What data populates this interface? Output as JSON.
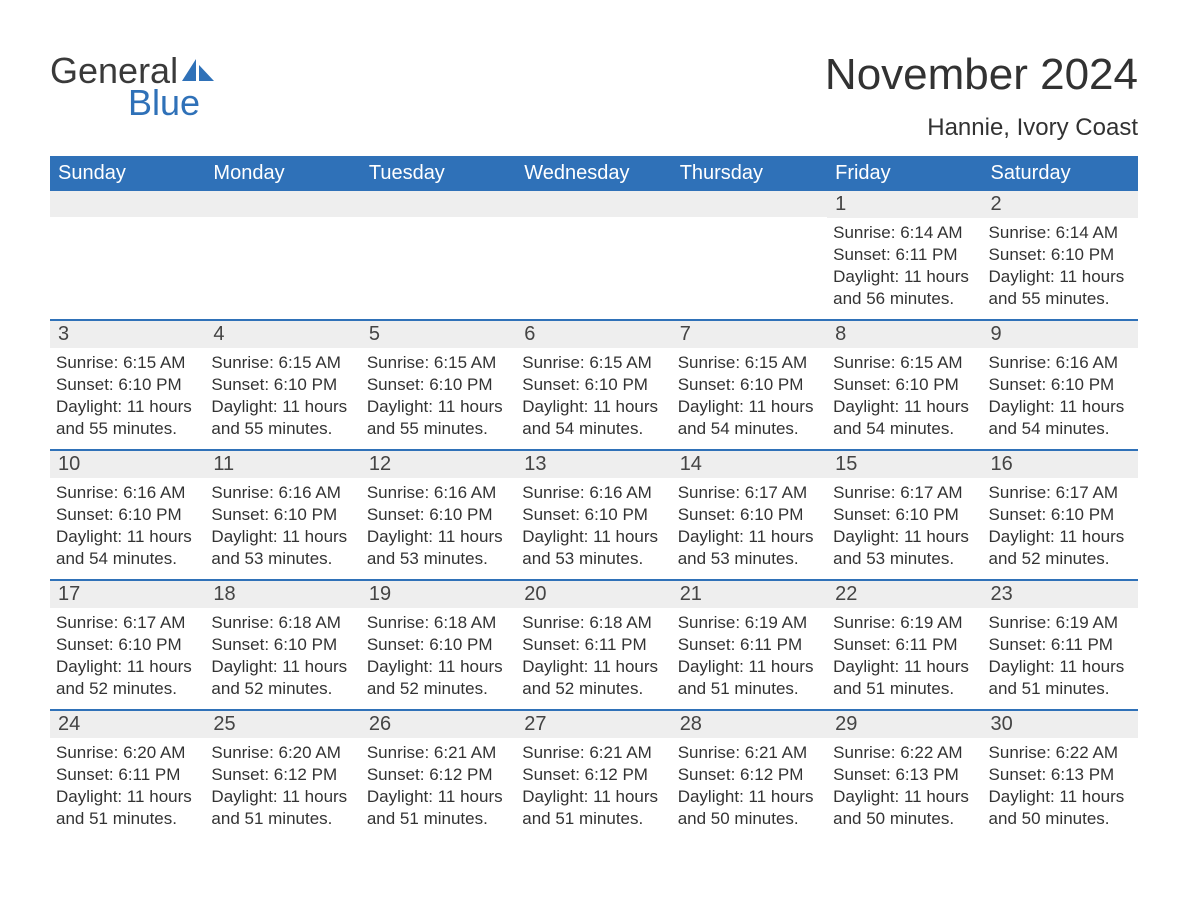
{
  "logo": {
    "text_general": "General",
    "text_blue": "Blue",
    "shape_color": "#2f71b8"
  },
  "title": "November 2024",
  "location": "Hannie, Ivory Coast",
  "colors": {
    "header_bg": "#2f71b8",
    "header_text": "#ffffff",
    "daynum_bg": "#eeeeee",
    "week_border": "#2f71b8",
    "body_text": "#333333",
    "title_text": "#323232"
  },
  "day_labels": [
    "Sunday",
    "Monday",
    "Tuesday",
    "Wednesday",
    "Thursday",
    "Friday",
    "Saturday"
  ],
  "weeks": [
    [
      {
        "empty": true
      },
      {
        "empty": true
      },
      {
        "empty": true
      },
      {
        "empty": true
      },
      {
        "empty": true
      },
      {
        "day": "1",
        "sunrise": "Sunrise: 6:14 AM",
        "sunset": "Sunset: 6:11 PM",
        "daylight": "Daylight: 11 hours and 56 minutes."
      },
      {
        "day": "2",
        "sunrise": "Sunrise: 6:14 AM",
        "sunset": "Sunset: 6:10 PM",
        "daylight": "Daylight: 11 hours and 55 minutes."
      }
    ],
    [
      {
        "day": "3",
        "sunrise": "Sunrise: 6:15 AM",
        "sunset": "Sunset: 6:10 PM",
        "daylight": "Daylight: 11 hours and 55 minutes."
      },
      {
        "day": "4",
        "sunrise": "Sunrise: 6:15 AM",
        "sunset": "Sunset: 6:10 PM",
        "daylight": "Daylight: 11 hours and 55 minutes."
      },
      {
        "day": "5",
        "sunrise": "Sunrise: 6:15 AM",
        "sunset": "Sunset: 6:10 PM",
        "daylight": "Daylight: 11 hours and 55 minutes."
      },
      {
        "day": "6",
        "sunrise": "Sunrise: 6:15 AM",
        "sunset": "Sunset: 6:10 PM",
        "daylight": "Daylight: 11 hours and 54 minutes."
      },
      {
        "day": "7",
        "sunrise": "Sunrise: 6:15 AM",
        "sunset": "Sunset: 6:10 PM",
        "daylight": "Daylight: 11 hours and 54 minutes."
      },
      {
        "day": "8",
        "sunrise": "Sunrise: 6:15 AM",
        "sunset": "Sunset: 6:10 PM",
        "daylight": "Daylight: 11 hours and 54 minutes."
      },
      {
        "day": "9",
        "sunrise": "Sunrise: 6:16 AM",
        "sunset": "Sunset: 6:10 PM",
        "daylight": "Daylight: 11 hours and 54 minutes."
      }
    ],
    [
      {
        "day": "10",
        "sunrise": "Sunrise: 6:16 AM",
        "sunset": "Sunset: 6:10 PM",
        "daylight": "Daylight: 11 hours and 54 minutes."
      },
      {
        "day": "11",
        "sunrise": "Sunrise: 6:16 AM",
        "sunset": "Sunset: 6:10 PM",
        "daylight": "Daylight: 11 hours and 53 minutes."
      },
      {
        "day": "12",
        "sunrise": "Sunrise: 6:16 AM",
        "sunset": "Sunset: 6:10 PM",
        "daylight": "Daylight: 11 hours and 53 minutes."
      },
      {
        "day": "13",
        "sunrise": "Sunrise: 6:16 AM",
        "sunset": "Sunset: 6:10 PM",
        "daylight": "Daylight: 11 hours and 53 minutes."
      },
      {
        "day": "14",
        "sunrise": "Sunrise: 6:17 AM",
        "sunset": "Sunset: 6:10 PM",
        "daylight": "Daylight: 11 hours and 53 minutes."
      },
      {
        "day": "15",
        "sunrise": "Sunrise: 6:17 AM",
        "sunset": "Sunset: 6:10 PM",
        "daylight": "Daylight: 11 hours and 53 minutes."
      },
      {
        "day": "16",
        "sunrise": "Sunrise: 6:17 AM",
        "sunset": "Sunset: 6:10 PM",
        "daylight": "Daylight: 11 hours and 52 minutes."
      }
    ],
    [
      {
        "day": "17",
        "sunrise": "Sunrise: 6:17 AM",
        "sunset": "Sunset: 6:10 PM",
        "daylight": "Daylight: 11 hours and 52 minutes."
      },
      {
        "day": "18",
        "sunrise": "Sunrise: 6:18 AM",
        "sunset": "Sunset: 6:10 PM",
        "daylight": "Daylight: 11 hours and 52 minutes."
      },
      {
        "day": "19",
        "sunrise": "Sunrise: 6:18 AM",
        "sunset": "Sunset: 6:10 PM",
        "daylight": "Daylight: 11 hours and 52 minutes."
      },
      {
        "day": "20",
        "sunrise": "Sunrise: 6:18 AM",
        "sunset": "Sunset: 6:11 PM",
        "daylight": "Daylight: 11 hours and 52 minutes."
      },
      {
        "day": "21",
        "sunrise": "Sunrise: 6:19 AM",
        "sunset": "Sunset: 6:11 PM",
        "daylight": "Daylight: 11 hours and 51 minutes."
      },
      {
        "day": "22",
        "sunrise": "Sunrise: 6:19 AM",
        "sunset": "Sunset: 6:11 PM",
        "daylight": "Daylight: 11 hours and 51 minutes."
      },
      {
        "day": "23",
        "sunrise": "Sunrise: 6:19 AM",
        "sunset": "Sunset: 6:11 PM",
        "daylight": "Daylight: 11 hours and 51 minutes."
      }
    ],
    [
      {
        "day": "24",
        "sunrise": "Sunrise: 6:20 AM",
        "sunset": "Sunset: 6:11 PM",
        "daylight": "Daylight: 11 hours and 51 minutes."
      },
      {
        "day": "25",
        "sunrise": "Sunrise: 6:20 AM",
        "sunset": "Sunset: 6:12 PM",
        "daylight": "Daylight: 11 hours and 51 minutes."
      },
      {
        "day": "26",
        "sunrise": "Sunrise: 6:21 AM",
        "sunset": "Sunset: 6:12 PM",
        "daylight": "Daylight: 11 hours and 51 minutes."
      },
      {
        "day": "27",
        "sunrise": "Sunrise: 6:21 AM",
        "sunset": "Sunset: 6:12 PM",
        "daylight": "Daylight: 11 hours and 51 minutes."
      },
      {
        "day": "28",
        "sunrise": "Sunrise: 6:21 AM",
        "sunset": "Sunset: 6:12 PM",
        "daylight": "Daylight: 11 hours and 50 minutes."
      },
      {
        "day": "29",
        "sunrise": "Sunrise: 6:22 AM",
        "sunset": "Sunset: 6:13 PM",
        "daylight": "Daylight: 11 hours and 50 minutes."
      },
      {
        "day": "30",
        "sunrise": "Sunrise: 6:22 AM",
        "sunset": "Sunset: 6:13 PM",
        "daylight": "Daylight: 11 hours and 50 minutes."
      }
    ]
  ]
}
